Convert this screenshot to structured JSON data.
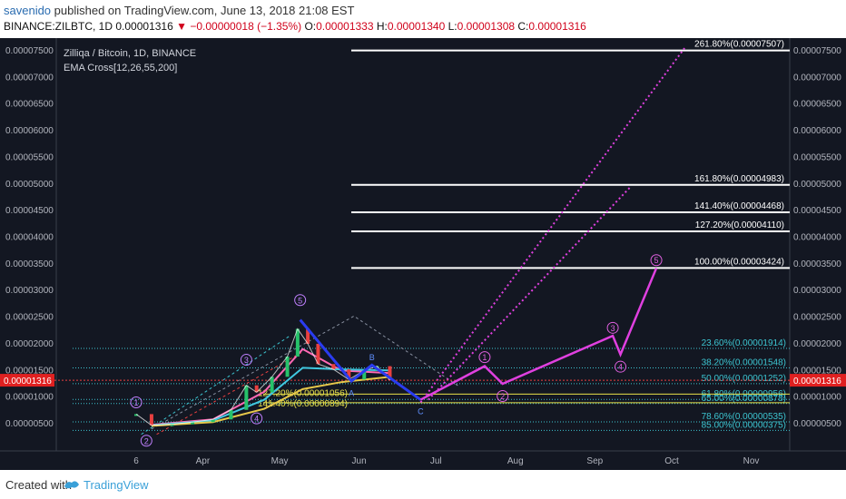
{
  "header": {
    "author": "savenido",
    "published_text": " published on TradingView.com, June 13, 2018 21:08 EST",
    "symbol_line": {
      "symbol": "BINANCE:ZILBTC, 1D",
      "price": "0.00001316",
      "change": "▼ −0.00000018 (−1.35%)",
      "o_label": "O:",
      "o": "0.00001333",
      "h_label": "H:",
      "h": "0.00001340",
      "l_label": "L:",
      "l": "0.00001308",
      "c_label": "C:",
      "c": "0.00001316"
    }
  },
  "footer": {
    "created_with": "Created with",
    "brand": "TradingView"
  },
  "chart_data": {
    "type": "line",
    "title": "Zilliqa / Bitcoin, 1D, BINANCE",
    "indicator": "EMA Cross[12,26,55,200]",
    "current_price_label": "0.00001316",
    "current_price": 1.316e-05,
    "x_ticks": [
      {
        "label": "6",
        "date": "2018-03-06"
      },
      {
        "label": "Apr",
        "date": "2018-04-01"
      },
      {
        "label": "May",
        "date": "2018-05-01"
      },
      {
        "label": "Jun",
        "date": "2018-06-01"
      },
      {
        "label": "Jul",
        "date": "2018-07-01"
      },
      {
        "label": "Aug",
        "date": "2018-08-01"
      },
      {
        "label": "Sep",
        "date": "2018-09-01"
      },
      {
        "label": "Oct",
        "date": "2018-10-01"
      },
      {
        "label": "Nov",
        "date": "2018-11-01"
      }
    ],
    "y_ticks": [
      "0.00007500",
      "0.00007000",
      "0.00006500",
      "0.00006000",
      "0.00005500",
      "0.00005000",
      "0.00004500",
      "0.00004000",
      "0.00003500",
      "0.00003000",
      "0.00002500",
      "0.00002000",
      "0.00001500",
      "0.00001000",
      "0.00000500"
    ],
    "ylim": [
      5e-07,
      7.8e-06
    ],
    "projection_fibs": [
      {
        "label": "261.80%(0.00007507)",
        "value": 7.507e-05
      },
      {
        "label": "161.80%(0.00004983)",
        "value": 4.983e-05
      },
      {
        "label": "141.40%(0.00004468)",
        "value": 4.468e-05
      },
      {
        "label": "127.20%(0.00004110)",
        "value": 4.11e-05
      },
      {
        "label": "100.00%(0.00003424)",
        "value": 3.424e-05
      }
    ],
    "retrace_fibs": [
      {
        "label": "23.60%(0.00001914)",
        "value": 1.914e-05
      },
      {
        "label": "38.20%(0.00001548)",
        "value": 1.548e-05
      },
      {
        "label": "50.00%(0.00001252)",
        "value": 1.252e-05
      },
      {
        "label": "61.80%(0.00000956)",
        "value": 9.56e-06
      },
      {
        "label": "65.00%(0.00000878)",
        "value": 8.78e-06
      },
      {
        "label": "78.60%(0.00000535)",
        "value": 5.35e-06
      },
      {
        "label": "85.00%(0.00000375)",
        "value": 3.75e-06
      }
    ],
    "extension_labels": [
      {
        "label": "127.20%(0.00001056)",
        "value": 1.056e-05
      },
      {
        "label": "141.40%(0.00000894)",
        "value": 8.94e-06
      }
    ],
    "wave_labels": [
      "1",
      "2",
      "3",
      "4",
      "5",
      "A",
      "B",
      "C",
      "1",
      "2",
      "3",
      "4",
      "5"
    ],
    "price_series": [
      {
        "date": "2018-03-06",
        "value": 6.8e-06
      },
      {
        "date": "2018-03-12",
        "value": 4.7e-06
      },
      {
        "date": "2018-03-20",
        "value": 4.9e-06
      },
      {
        "date": "2018-03-28",
        "value": 5.3e-06
      },
      {
        "date": "2018-04-05",
        "value": 5.8e-06
      },
      {
        "date": "2018-04-12",
        "value": 7.6e-06
      },
      {
        "date": "2018-04-18",
        "value": 1.22e-05
      },
      {
        "date": "2018-04-22",
        "value": 1.09e-05
      },
      {
        "date": "2018-04-28",
        "value": 1.38e-05
      },
      {
        "date": "2018-05-04",
        "value": 1.76e-05
      },
      {
        "date": "2018-05-08",
        "value": 2.28e-05
      },
      {
        "date": "2018-05-12",
        "value": 2e-05
      },
      {
        "date": "2018-05-16",
        "value": 1.62e-05
      },
      {
        "date": "2018-05-22",
        "value": 1.52e-05
      },
      {
        "date": "2018-05-28",
        "value": 1.33e-05
      },
      {
        "date": "2018-06-03",
        "value": 1.5e-05
      },
      {
        "date": "2018-06-08",
        "value": 1.58e-05
      },
      {
        "date": "2018-06-13",
        "value": 1.32e-05
      }
    ],
    "ema_series": [
      {
        "name": "EMA 12",
        "color": "#ff69b4",
        "values": [
          {
            "date": "2018-03-12",
            "value": 4.8e-06
          },
          {
            "date": "2018-04-05",
            "value": 5.8e-06
          },
          {
            "date": "2018-04-25",
            "value": 1.1e-05
          },
          {
            "date": "2018-05-10",
            "value": 1.9e-05
          },
          {
            "date": "2018-05-25",
            "value": 1.5e-05
          },
          {
            "date": "2018-06-13",
            "value": 1.45e-05
          }
        ]
      },
      {
        "name": "EMA 26",
        "color": "#40c8e0",
        "values": [
          {
            "date": "2018-03-12",
            "value": 4.7e-06
          },
          {
            "date": "2018-04-05",
            "value": 5.6e-06
          },
          {
            "date": "2018-04-25",
            "value": 9.5e-06
          },
          {
            "date": "2018-05-10",
            "value": 1.55e-05
          },
          {
            "date": "2018-05-25",
            "value": 1.52e-05
          },
          {
            "date": "2018-06-13",
            "value": 1.5e-05
          }
        ]
      },
      {
        "name": "EMA 55",
        "color": "#e6c84a",
        "values": [
          {
            "date": "2018-03-12",
            "value": 4.6e-06
          },
          {
            "date": "2018-04-05",
            "value": 5.3e-06
          },
          {
            "date": "2018-04-25",
            "value": 7.8e-06
          },
          {
            "date": "2018-05-10",
            "value": 1.15e-05
          },
          {
            "date": "2018-05-25",
            "value": 1.28e-05
          },
          {
            "date": "2018-06-13",
            "value": 1.38e-05
          }
        ]
      }
    ],
    "abc_path": [
      {
        "date": "2018-05-09",
        "value": 2.45e-05
      },
      {
        "date": "2018-05-29",
        "value": 1.3e-05
      },
      {
        "date": "2018-06-06",
        "value": 1.6e-05
      },
      {
        "date": "2018-06-25",
        "value": 9.5e-06
      }
    ],
    "projection_path": [
      {
        "date": "2018-06-25",
        "value": 9.5e-06
      },
      {
        "date": "2018-07-20",
        "value": 1.58e-05
      },
      {
        "date": "2018-07-27",
        "value": 1.25e-05
      },
      {
        "date": "2018-09-08",
        "value": 2.15e-05
      },
      {
        "date": "2018-09-11",
        "value": 1.8e-05
      },
      {
        "date": "2018-09-25",
        "value": 3.42e-05
      }
    ]
  }
}
